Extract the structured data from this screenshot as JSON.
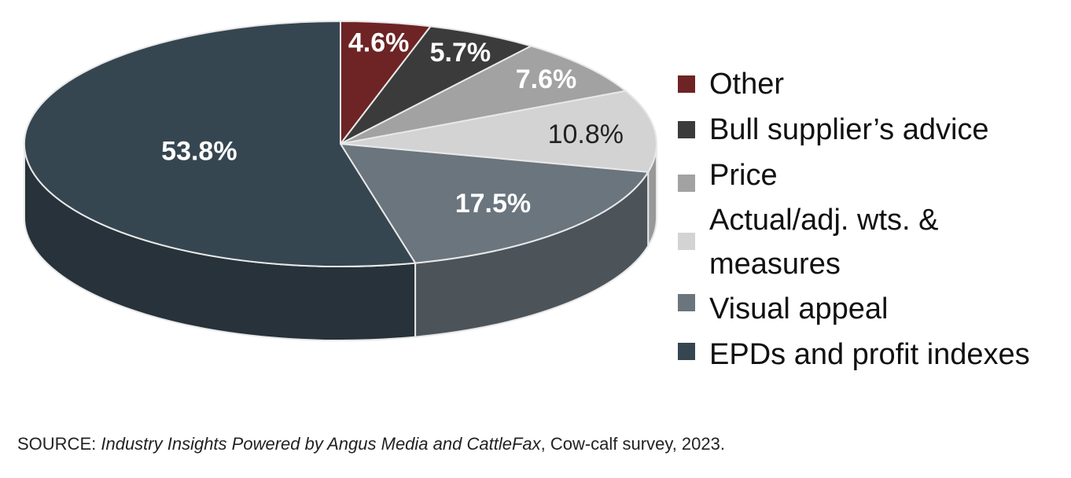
{
  "chart_data": {
    "type": "pie",
    "style": "3d",
    "slices": [
      {
        "label": "Other",
        "value": 4.6,
        "display": "4.6%",
        "color": "#6e2424",
        "label_color": "#ffffff"
      },
      {
        "label": "Bull supplier’s advice",
        "value": 5.7,
        "display": "5.7%",
        "color": "#3b3b3b",
        "label_color": "#ffffff"
      },
      {
        "label": "Price",
        "value": 7.6,
        "display": "7.6%",
        "color": "#a2a2a2",
        "label_color": "#ffffff"
      },
      {
        "label": "Actual/adj. wts. & measures",
        "value": 10.8,
        "display": "10.8%",
        "color": "#d3d3d3",
        "label_color": "#222222"
      },
      {
        "label": "Visual appeal",
        "value": 17.5,
        "display": "17.5%",
        "color": "#6a757d",
        "label_color": "#ffffff"
      },
      {
        "label": "EPDs and profit indexes",
        "value": 53.8,
        "display": "53.8%",
        "color": "#364650",
        "label_color": "#ffffff"
      }
    ],
    "legend_position": "right"
  },
  "legend": [
    {
      "label": "Other",
      "color": "#6e2424"
    },
    {
      "label": "Bull supplier’s advice",
      "color": "#3b3b3b"
    },
    {
      "label": "Price",
      "color": "#a2a2a2"
    },
    {
      "label": "Actual/adj. wts. & measures",
      "color": "#d3d3d3"
    },
    {
      "label": "Visual appeal",
      "color": "#6a757d"
    },
    {
      "label": "EPDs and profit indexes",
      "color": "#364650"
    }
  ],
  "source": {
    "prefix": "SOURCE: ",
    "title": "Industry Insights Powered by Angus Media and CattleFax",
    "suffix": ", Cow-calf survey, 2023."
  }
}
